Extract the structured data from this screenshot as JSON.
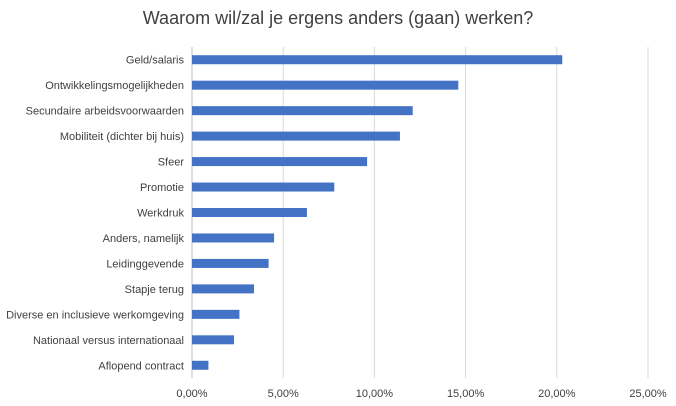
{
  "chart_data": {
    "type": "bar",
    "orientation": "horizontal",
    "title": "Waarom wil/zal je ergens anders (gaan) werken?",
    "xlabel": "",
    "ylabel": "",
    "categories": [
      "Geld/salaris",
      "Ontwikkelingsmogelijkheden",
      "Secundaire arbeidsvoorwaarden",
      "Mobiliteit (dichter bij huis)",
      "Sfeer",
      "Promotie",
      "Werkdruk",
      "Anders, namelijk",
      "Leidinggevende",
      "Stapje terug",
      "Diverse en inclusieve werkomgeving",
      "Nationaal versus internationaal",
      "Aflopend contract"
    ],
    "values": [
      20.3,
      14.6,
      12.1,
      11.4,
      9.6,
      7.8,
      6.3,
      4.5,
      4.2,
      3.4,
      2.6,
      2.3,
      0.9
    ],
    "xlim": [
      0,
      25
    ],
    "x_ticks": [
      "0,00%",
      "5,00%",
      "10,00%",
      "15,00%",
      "20,00%",
      "25,00%"
    ],
    "grid": true,
    "legend": "none",
    "bar_color": "#4472c4"
  }
}
